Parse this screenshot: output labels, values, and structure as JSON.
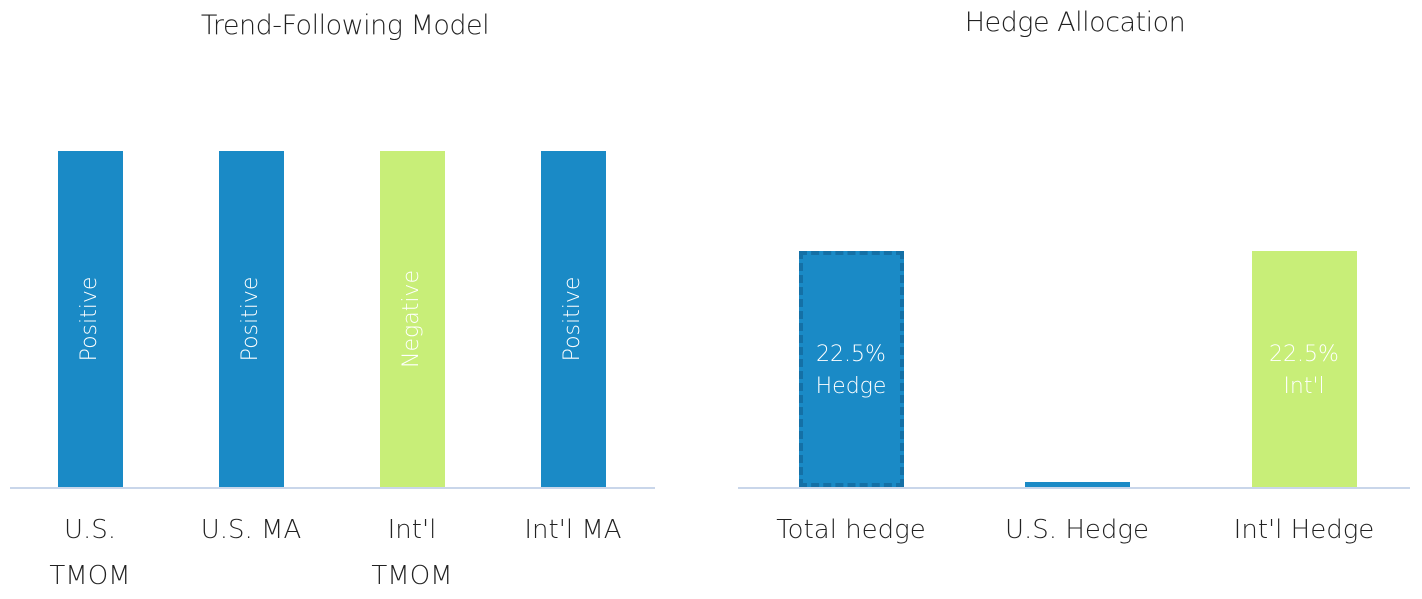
{
  "chart_data": [
    {
      "type": "bar",
      "title": "Trend-Following Model",
      "categories": [
        "U.S. TMOM",
        "U.S. MA",
        "Int'l TMOM",
        "Int'l MA"
      ],
      "values": [
        1,
        1,
        1,
        1
      ],
      "value_labels": [
        "Positive",
        "Positive",
        "Negative",
        "Positive"
      ],
      "colors": [
        "#1a8ac6",
        "#1a8ac6",
        "#c8ee78",
        "#1a8ac6"
      ],
      "ylim": [
        0,
        1
      ],
      "label_orientation": "vertical"
    },
    {
      "type": "bar",
      "title": "Hedge Allocation",
      "categories": [
        "Total hedge",
        "U.S. Hedge",
        "Int'l Hedge"
      ],
      "values": [
        22.5,
        0.5,
        22.5
      ],
      "value_labels": [
        "22.5% Hedge",
        null,
        "22.5% Int'l"
      ],
      "colors": [
        "#1a8ac6",
        "#1a8ac6",
        "#c8ee78"
      ],
      "ylim": [
        0,
        32
      ],
      "label_orientation": "horizontal"
    }
  ]
}
